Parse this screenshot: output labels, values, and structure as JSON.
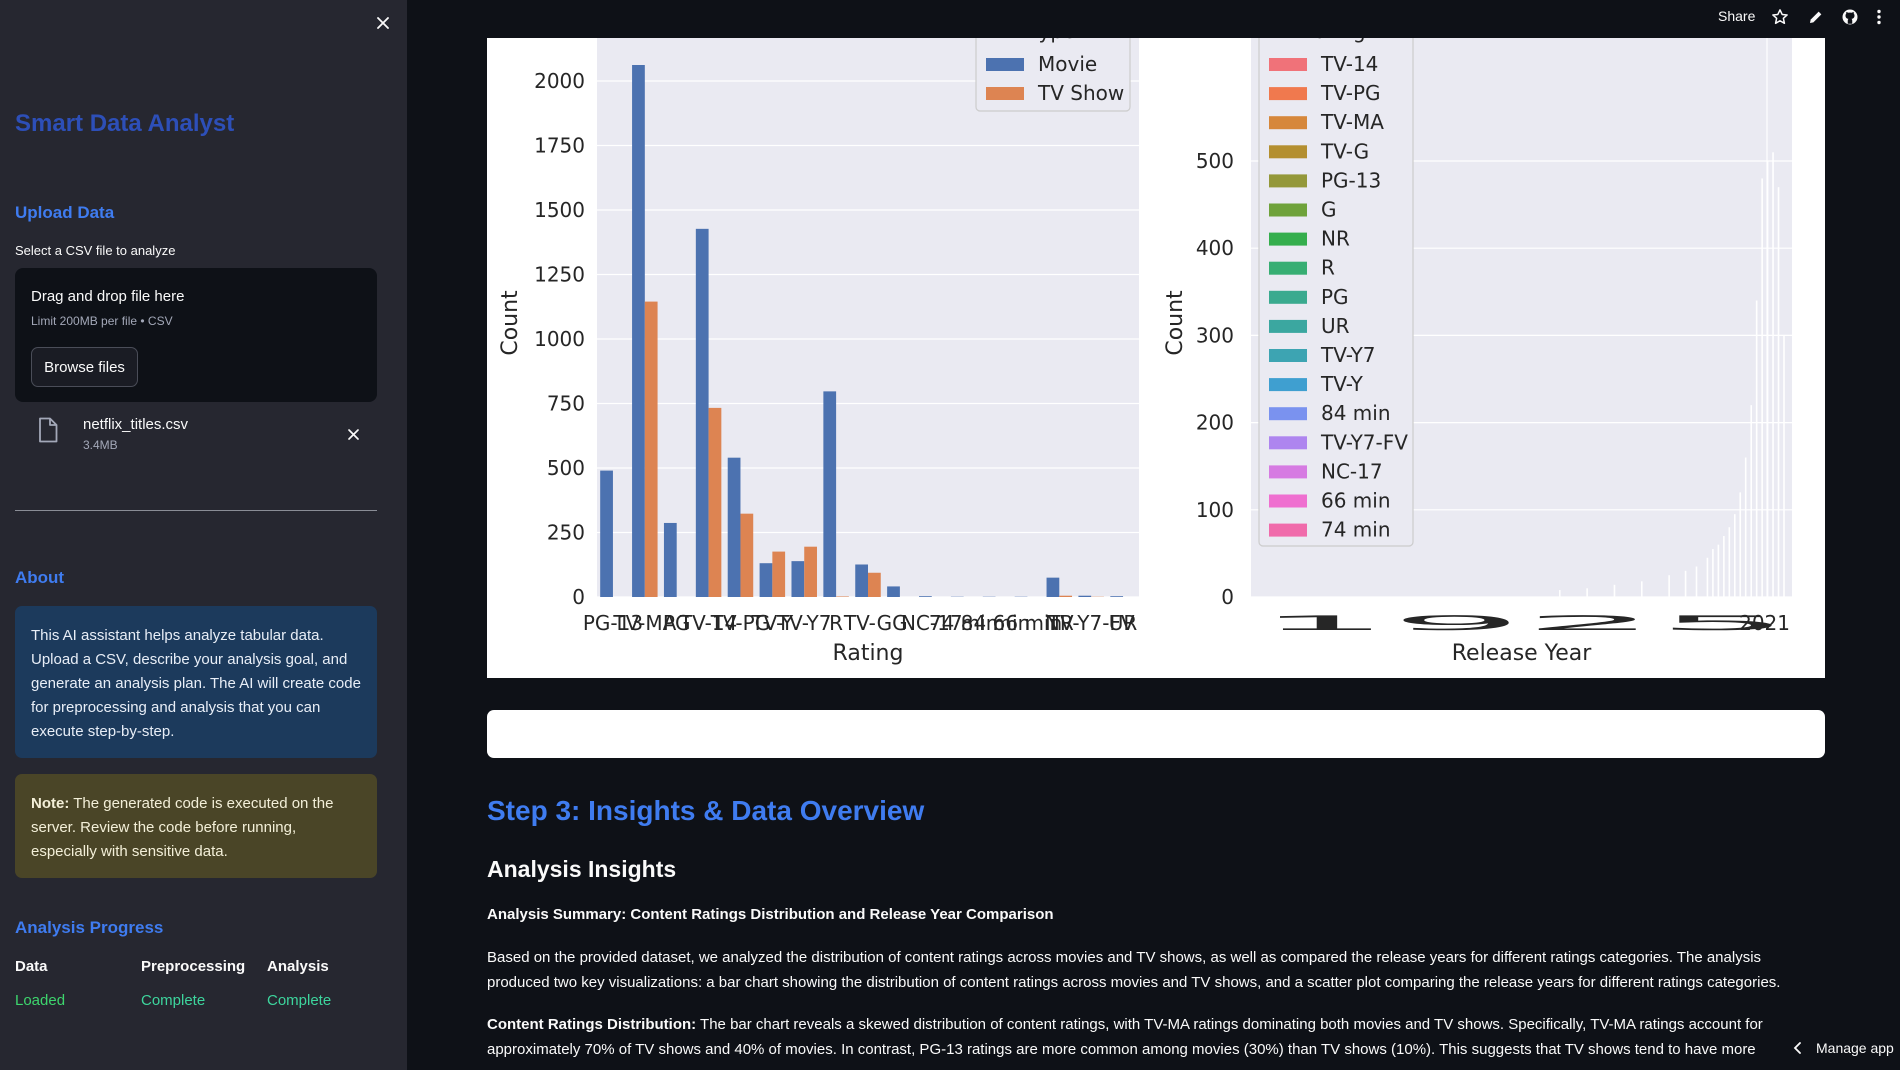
{
  "sidebar": {
    "title": "Smart Data Analyst",
    "upload_heading": "Upload Data",
    "upload_label": "Select a CSV file to analyze",
    "dropzone_main": "Drag and drop file here",
    "dropzone_sub": "Limit 200MB per file • CSV",
    "browse_label": "Browse files",
    "file": {
      "name": "netflix_titles.csv",
      "size": "3.4MB"
    },
    "about_heading": "About",
    "about_text": "This AI assistant helps analyze tabular data. Upload a CSV, describe your analysis goal, and generate an analysis plan. The AI will create code for preprocessing and analysis that you can execute step-by-step.",
    "note_label": "Note:",
    "note_text": " The generated code is executed on the server. Review the code before running, especially with sensitive data.",
    "progress_heading": "Analysis Progress",
    "progress": [
      {
        "label": "Data",
        "status": "Loaded"
      },
      {
        "label": "Preprocessing",
        "status": "Complete"
      },
      {
        "label": "Analysis",
        "status": "Complete"
      }
    ]
  },
  "header": {
    "share_label": "Share"
  },
  "main": {
    "step_heading": "Step 3: Insights & Data Overview",
    "insights_heading": "Analysis Insights",
    "summary_title": "Analysis Summary: Content Ratings Distribution and Release Year Comparison",
    "paragraph1": "Based on the provided dataset, we analyzed the distribution of content ratings across movies and TV shows, as well as compared the release years for different ratings categories. The analysis produced two key visualizations: a bar chart showing the distribution of content ratings across movies and TV shows, and a scatter plot comparing the release years for different ratings categories.",
    "paragraph2_label": "Content Ratings Distribution:",
    "paragraph2_text": " The bar chart reveals a skewed distribution of content ratings, with TV-MA ratings dominating both movies and TV shows. Specifically, TV-MA ratings account for approximately 70% of TV shows and 40% of movies. In contrast, PG-13 ratings are more common among movies (30%) than TV shows (10%). This suggests that TV shows tend to have more matu",
    "manage_label": "Manage app"
  },
  "colors": {
    "movie": "#4c72b0",
    "tvshow": "#dd8452",
    "accent": "#3f7cf0",
    "success": "#3dd56d"
  },
  "chart_data": [
    {
      "type": "bar",
      "xlabel": "Rating",
      "ylabel": "Count",
      "ylim": [
        0,
        2050
      ],
      "yticks": [
        0,
        250,
        500,
        750,
        1000,
        1250,
        1500,
        1750,
        2000
      ],
      "legend_title": "type",
      "legend_placement": "top-right",
      "grid": true,
      "categories": [
        "PG-13",
        "TV-MA",
        "PG",
        "TV-14",
        "TV-PG",
        "TV-Y",
        "TV-Y7",
        "R",
        "TV-G",
        "G",
        "NC-17",
        "74 min",
        "84 min",
        "66 min",
        "NR",
        "TV-Y7-FV",
        "UR"
      ],
      "tick_text": [
        "PG-13",
        "TV-MA",
        "PG",
        "TV-14",
        "TV-PG",
        "TV-Y",
        "TV-Y7",
        "R",
        "TV-G",
        "G",
        "NC-17",
        "74 min",
        "84 min",
        "66 min",
        "NR",
        "TV-Y7-FV",
        "UR"
      ],
      "series": [
        {
          "name": "Movie",
          "values": [
            490,
            2062,
            287,
            1427,
            540,
            131,
            139,
            797,
            126,
            41,
            3,
            1,
            1,
            1,
            75,
            5,
            3
          ]
        },
        {
          "name": "TV Show",
          "values": [
            0,
            1145,
            0,
            733,
            323,
            176,
            195,
            2,
            94,
            0,
            0,
            0,
            0,
            0,
            5,
            1,
            0
          ]
        }
      ]
    },
    {
      "type": "bar",
      "xlabel": "Release Year",
      "ylabel": "Count",
      "ylim": [
        0,
        560
      ],
      "yticks": [
        0,
        100,
        200,
        300,
        400,
        500
      ],
      "legend_title": "rating",
      "legend_placement": "top-left",
      "grid": true,
      "x_range": [
        1925,
        2021
      ],
      "legend": [
        "TV-14",
        "TV-PG",
        "TV-MA",
        "TV-G",
        "PG-13",
        "G",
        "NR",
        "R",
        "PG",
        "UR",
        "TV-Y7",
        "TV-Y",
        "84 min",
        "TV-Y7-FV",
        "NC-17",
        "66 min",
        "74 min"
      ],
      "legend_colors": [
        "#f07279",
        "#f0794e",
        "#d6873b",
        "#b48f30",
        "#94983a",
        "#6fa23b",
        "#35ae4d",
        "#37ae73",
        "#3aaa8f",
        "#3ba7a0",
        "#3da4b2",
        "#3f9fd0",
        "#7a92ef",
        "#ae85ef",
        "#d67be2",
        "#ef6fd0",
        "#f06bab"
      ],
      "years": [
        1980,
        1985,
        1990,
        1995,
        2000,
        2003,
        2005,
        2007,
        2008,
        2009,
        2010,
        2011,
        2012,
        2013,
        2014,
        2015,
        2016,
        2017,
        2018,
        2019,
        2020,
        2021
      ],
      "values": [
        8,
        10,
        14,
        18,
        25,
        30,
        35,
        45,
        55,
        60,
        70,
        80,
        95,
        120,
        160,
        220,
        340,
        480,
        500,
        510,
        470,
        300
      ]
    }
  ]
}
